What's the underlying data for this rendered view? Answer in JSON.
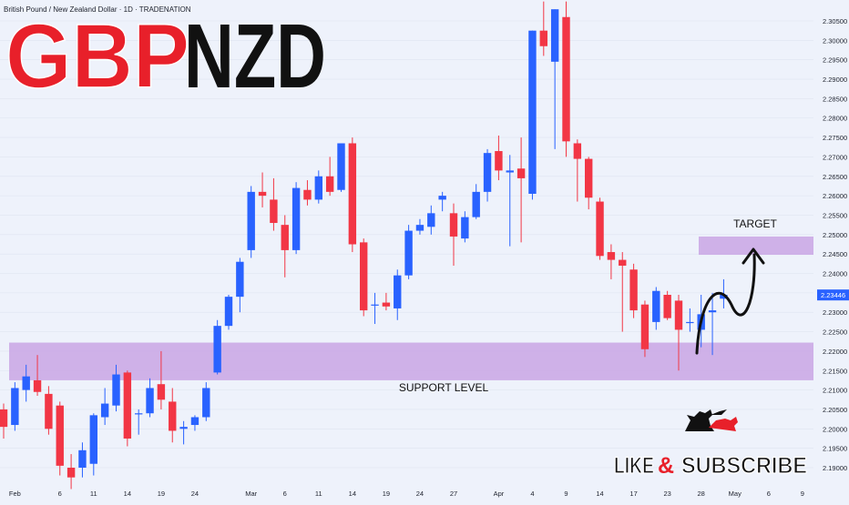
{
  "header": {
    "instrument": "British Pound / New Zealand Dollar · 1D · TRADENATION",
    "title_part1": "GBP",
    "title_part2": "NZD"
  },
  "colors": {
    "background": "#eef2fb",
    "bull": "#2962ff",
    "bear": "#f23645",
    "zone": "#c9a6e4",
    "title_red": "#e8202a",
    "title_black": "#111111"
  },
  "annotations": {
    "support_label": "SUPPORT LEVEL",
    "target_label": "TARGET",
    "cta_like": "LIKE",
    "cta_amp": "&",
    "cta_subscribe": "SUBSCRIBE",
    "logo_icon": "bull-bear-icon",
    "arrow_icon": "curved-arrow-up-icon"
  },
  "chart_data": {
    "type": "candlestick",
    "price_axis": {
      "range": [
        2.1875,
        2.3085
      ],
      "ticks": [
        "2.30500",
        "2.30000",
        "2.29500",
        "2.29000",
        "2.28500",
        "2.28000",
        "2.27500",
        "2.27000",
        "2.26500",
        "2.26000",
        "2.25500",
        "2.25000",
        "2.24500",
        "2.24000",
        "2.23500",
        "2.23000",
        "2.22500",
        "2.22000",
        "2.21500",
        "2.21000",
        "2.20500",
        "2.20000",
        "2.19500",
        "2.19000"
      ],
      "last_price": "2.23446"
    },
    "time_axis": {
      "ticks": [
        {
          "label": "Feb",
          "i": 1
        },
        {
          "label": "6",
          "i": 5
        },
        {
          "label": "11",
          "i": 8
        },
        {
          "label": "14",
          "i": 11
        },
        {
          "label": "19",
          "i": 14
        },
        {
          "label": "24",
          "i": 17
        },
        {
          "label": "Mar",
          "i": 22
        },
        {
          "label": "6",
          "i": 25
        },
        {
          "label": "11",
          "i": 28
        },
        {
          "label": "14",
          "i": 31
        },
        {
          "label": "19",
          "i": 34
        },
        {
          "label": "24",
          "i": 37
        },
        {
          "label": "27",
          "i": 40
        },
        {
          "label": "Apr",
          "i": 44
        },
        {
          "label": "4",
          "i": 47
        },
        {
          "label": "9",
          "i": 50
        },
        {
          "label": "14",
          "i": 53
        },
        {
          "label": "17",
          "i": 56
        },
        {
          "label": "23",
          "i": 59
        },
        {
          "label": "28",
          "i": 62
        },
        {
          "label": "May",
          "i": 65
        },
        {
          "label": "6",
          "i": 68
        },
        {
          "label": "9",
          "i": 71
        }
      ]
    },
    "support_zone": [
      2.2125,
      2.2222
    ],
    "target_zone": [
      2.2448,
      2.2495
    ],
    "candles": [
      {
        "o": 2.205,
        "h": 2.2065,
        "l": 2.1975,
        "c": 2.2005
      },
      {
        "o": 2.201,
        "h": 2.212,
        "l": 2.1995,
        "c": 2.2105
      },
      {
        "o": 2.21,
        "h": 2.2165,
        "l": 2.207,
        "c": 2.2135
      },
      {
        "o": 2.2125,
        "h": 2.219,
        "l": 2.2085,
        "c": 2.2095
      },
      {
        "o": 2.209,
        "h": 2.211,
        "l": 2.1985,
        "c": 2.2
      },
      {
        "o": 2.206,
        "h": 2.207,
        "l": 2.188,
        "c": 2.1905
      },
      {
        "o": 2.19,
        "h": 2.1935,
        "l": 2.1845,
        "c": 2.1875
      },
      {
        "o": 2.19,
        "h": 2.1965,
        "l": 2.1875,
        "c": 2.1945
      },
      {
        "o": 2.191,
        "h": 2.204,
        "l": 2.188,
        "c": 2.2035
      },
      {
        "o": 2.203,
        "h": 2.2105,
        "l": 2.201,
        "c": 2.2065
      },
      {
        "o": 2.206,
        "h": 2.2165,
        "l": 2.2045,
        "c": 2.214
      },
      {
        "o": 2.2145,
        "h": 2.215,
        "l": 2.1955,
        "c": 2.1975
      },
      {
        "o": 2.204,
        "h": 2.205,
        "l": 2.1985,
        "c": 2.204
      },
      {
        "o": 2.204,
        "h": 2.213,
        "l": 2.203,
        "c": 2.2105
      },
      {
        "o": 2.2115,
        "h": 2.22,
        "l": 2.205,
        "c": 2.2075
      },
      {
        "o": 2.207,
        "h": 2.2105,
        "l": 2.1965,
        "c": 2.1995
      },
      {
        "o": 2.2,
        "h": 2.202,
        "l": 2.196,
        "c": 2.2005
      },
      {
        "o": 2.201,
        "h": 2.2035,
        "l": 2.1995,
        "c": 2.203
      },
      {
        "o": 2.203,
        "h": 2.212,
        "l": 2.202,
        "c": 2.2105
      },
      {
        "o": 2.2145,
        "h": 2.228,
        "l": 2.214,
        "c": 2.2265
      },
      {
        "o": 2.2265,
        "h": 2.2345,
        "l": 2.2255,
        "c": 2.234
      },
      {
        "o": 2.234,
        "h": 2.244,
        "l": 2.23,
        "c": 2.243
      },
      {
        "o": 2.246,
        "h": 2.2625,
        "l": 2.244,
        "c": 2.261
      },
      {
        "o": 2.261,
        "h": 2.266,
        "l": 2.257,
        "c": 2.26
      },
      {
        "o": 2.259,
        "h": 2.2645,
        "l": 2.251,
        "c": 2.253
      },
      {
        "o": 2.2525,
        "h": 2.255,
        "l": 2.239,
        "c": 2.246
      },
      {
        "o": 2.246,
        "h": 2.2635,
        "l": 2.245,
        "c": 2.262
      },
      {
        "o": 2.2615,
        "h": 2.264,
        "l": 2.2575,
        "c": 2.259
      },
      {
        "o": 2.259,
        "h": 2.2665,
        "l": 2.258,
        "c": 2.265
      },
      {
        "o": 2.265,
        "h": 2.27,
        "l": 2.26,
        "c": 2.261
      },
      {
        "o": 2.2615,
        "h": 2.2735,
        "l": 2.261,
        "c": 2.2735
      },
      {
        "o": 2.2735,
        "h": 2.275,
        "l": 2.2455,
        "c": 2.2475
      },
      {
        "o": 2.248,
        "h": 2.249,
        "l": 2.229,
        "c": 2.2305
      },
      {
        "o": 2.232,
        "h": 2.235,
        "l": 2.227,
        "c": 2.232
      },
      {
        "o": 2.2325,
        "h": 2.235,
        "l": 2.2305,
        "c": 2.2315
      },
      {
        "o": 2.231,
        "h": 2.241,
        "l": 2.228,
        "c": 2.2395
      },
      {
        "o": 2.2395,
        "h": 2.2525,
        "l": 2.2385,
        "c": 2.251
      },
      {
        "o": 2.251,
        "h": 2.254,
        "l": 2.25,
        "c": 2.2525
      },
      {
        "o": 2.252,
        "h": 2.2575,
        "l": 2.25,
        "c": 2.2555
      },
      {
        "o": 2.259,
        "h": 2.261,
        "l": 2.256,
        "c": 2.26
      },
      {
        "o": 2.2555,
        "h": 2.258,
        "l": 2.242,
        "c": 2.2495
      },
      {
        "o": 2.249,
        "h": 2.256,
        "l": 2.248,
        "c": 2.2545
      },
      {
        "o": 2.2545,
        "h": 2.263,
        "l": 2.254,
        "c": 2.261
      },
      {
        "o": 2.261,
        "h": 2.272,
        "l": 2.2585,
        "c": 2.271
      },
      {
        "o": 2.2715,
        "h": 2.2755,
        "l": 2.264,
        "c": 2.2665
      },
      {
        "o": 2.266,
        "h": 2.2705,
        "l": 2.247,
        "c": 2.2665
      },
      {
        "o": 2.267,
        "h": 2.275,
        "l": 2.248,
        "c": 2.2645
      },
      {
        "o": 2.2605,
        "h": 2.3025,
        "l": 2.259,
        "c": 2.3025
      },
      {
        "o": 2.3025,
        "h": 2.31,
        "l": 2.296,
        "c": 2.2985
      },
      {
        "o": 2.2945,
        "h": 2.308,
        "l": 2.272,
        "c": 2.308
      },
      {
        "o": 2.306,
        "h": 2.31,
        "l": 2.27,
        "c": 2.274
      },
      {
        "o": 2.2735,
        "h": 2.2745,
        "l": 2.2585,
        "c": 2.2695
      },
      {
        "o": 2.2695,
        "h": 2.27,
        "l": 2.2565,
        "c": 2.2595
      },
      {
        "o": 2.2585,
        "h": 2.2595,
        "l": 2.2435,
        "c": 2.2445
      },
      {
        "o": 2.2455,
        "h": 2.2475,
        "l": 2.2385,
        "c": 2.2435
      },
      {
        "o": 2.2435,
        "h": 2.2455,
        "l": 2.225,
        "c": 2.242
      },
      {
        "o": 2.241,
        "h": 2.2425,
        "l": 2.2285,
        "c": 2.2305
      },
      {
        "o": 2.232,
        "h": 2.233,
        "l": 2.2185,
        "c": 2.2205
      },
      {
        "o": 2.2275,
        "h": 2.2365,
        "l": 2.2255,
        "c": 2.2355
      },
      {
        "o": 2.2345,
        "h": 2.2355,
        "l": 2.228,
        "c": 2.2285
      },
      {
        "o": 2.233,
        "h": 2.2345,
        "l": 2.215,
        "c": 2.2255
      },
      {
        "o": 2.2275,
        "h": 2.231,
        "l": 2.225,
        "c": 2.2275
      },
      {
        "o": 2.2255,
        "h": 2.2345,
        "l": 2.221,
        "c": 2.2295
      },
      {
        "o": 2.23,
        "h": 2.235,
        "l": 2.219,
        "c": 2.2305
      },
      {
        "o": 2.2335,
        "h": 2.2385,
        "l": 2.231,
        "c": 2.2345
      }
    ]
  }
}
